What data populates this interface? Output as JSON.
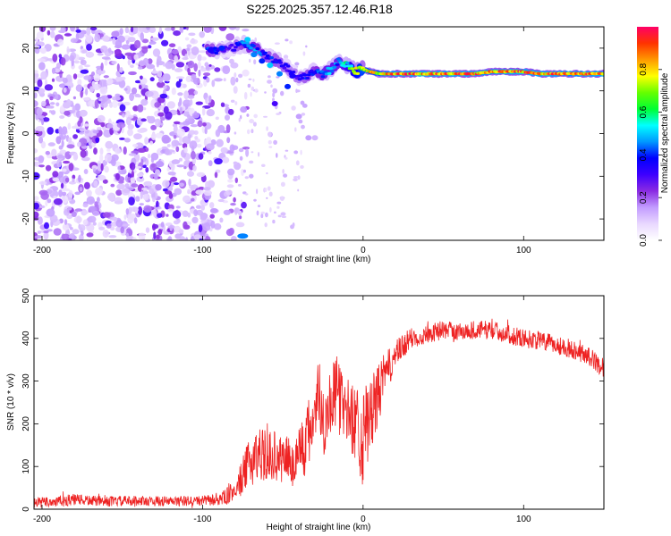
{
  "title": "S225.2025.357.12.46.R18",
  "chart_data": [
    {
      "type": "heatmap",
      "name": "spectrogram",
      "xlabel": "Height of straight line (km)",
      "ylabel": "Frequency (Hz)",
      "xlim": [
        -205,
        150
      ],
      "ylim": [
        -25,
        25
      ],
      "xticks": [
        -200,
        -100,
        0,
        100
      ],
      "yticks": [
        -20,
        -10,
        0,
        10,
        20
      ],
      "noise_region_x": [
        -205,
        -80
      ],
      "noise_cutoff_x": -80,
      "ridge_frequency_hz": 14,
      "ridge": {
        "x": [
          -97,
          -90,
          -82,
          -75,
          -67,
          -60,
          -53,
          -46,
          -40,
          -35,
          -30,
          -25,
          -20,
          -15,
          -10,
          -5,
          0,
          10,
          20,
          30,
          40,
          50,
          60,
          70,
          80,
          90,
          100,
          110,
          120,
          130,
          140,
          150
        ],
        "y": [
          19.5,
          19.5,
          20,
          21,
          20,
          18,
          17,
          15,
          13,
          13.5,
          15,
          14,
          15,
          17,
          16,
          14.5,
          15,
          14,
          14,
          14,
          14,
          14,
          14,
          14,
          14.5,
          14.5,
          14.5,
          14,
          14,
          14,
          14,
          14
        ],
        "amp": [
          0.45,
          0.35,
          0.3,
          0.45,
          0.5,
          0.4,
          0.4,
          0.35,
          0.35,
          0.4,
          0.45,
          0.5,
          0.55,
          0.5,
          0.6,
          0.75,
          0.85,
          0.85,
          0.95,
          0.95,
          0.95,
          0.95,
          0.95,
          0.95,
          0.9,
          0.95,
          0.95,
          0.95,
          0.95,
          0.9,
          0.95,
          0.95
        ]
      },
      "colorbar": {
        "label": "Normalized spectral amplitude",
        "range": [
          0,
          1
        ],
        "ticks": [
          0.0,
          0.2,
          0.4,
          0.6,
          0.8
        ],
        "tick_labels": [
          "0.0",
          "0.2",
          "0.4",
          "0.6",
          "0.8"
        ],
        "colors": [
          "#ffffff",
          "#e9d8ff",
          "#c29cff",
          "#8a2be2",
          "#3d00ff",
          "#0000ff",
          "#0099ff",
          "#00ffff",
          "#00ff33",
          "#66ff00",
          "#ffff00",
          "#ff9900",
          "#ff3300",
          "#ff0066"
        ]
      }
    },
    {
      "type": "line",
      "name": "snr",
      "xlabel": "Height of straight line (km)",
      "ylabel": "SNR (10 * v/v)",
      "xlim": [
        -205,
        150
      ],
      "ylim": [
        0,
        500
      ],
      "xticks": [
        -200,
        -100,
        0,
        100
      ],
      "yticks": [
        0,
        100,
        200,
        300,
        400,
        500
      ],
      "color": "#ee2222",
      "series": [
        {
          "name": "SNR",
          "x": [
            -205,
            -190,
            -180,
            -170,
            -160,
            -140,
            -120,
            -100,
            -90,
            -85,
            -80,
            -76,
            -72,
            -68,
            -64,
            -60,
            -56,
            -52,
            -48,
            -44,
            -40,
            -36,
            -32,
            -28,
            -24,
            -20,
            -16,
            -12,
            -8,
            -4,
            0,
            4,
            8,
            12,
            16,
            20,
            25,
            30,
            40,
            50,
            60,
            70,
            80,
            90,
            100,
            110,
            120,
            130,
            140,
            150
          ],
          "y": [
            15,
            18,
            22,
            20,
            18,
            20,
            18,
            20,
            22,
            30,
            45,
            70,
            100,
            120,
            135,
            120,
            130,
            110,
            130,
            100,
            140,
            150,
            200,
            280,
            200,
            260,
            270,
            240,
            220,
            200,
            170,
            210,
            250,
            300,
            330,
            360,
            380,
            400,
            410,
            420,
            415,
            420,
            420,
            410,
            400,
            395,
            385,
            375,
            360,
            330
          ],
          "noise_amplitude": [
            12,
            14,
            14,
            12,
            12,
            12,
            12,
            12,
            14,
            20,
            25,
            40,
            55,
            60,
            65,
            60,
            60,
            55,
            60,
            55,
            70,
            80,
            90,
            90,
            80,
            80,
            90,
            80,
            80,
            100,
            120,
            90,
            80,
            60,
            45,
            35,
            30,
            25,
            22,
            22,
            22,
            22,
            22,
            22,
            22,
            22,
            22,
            22,
            22,
            22
          ]
        }
      ]
    }
  ]
}
